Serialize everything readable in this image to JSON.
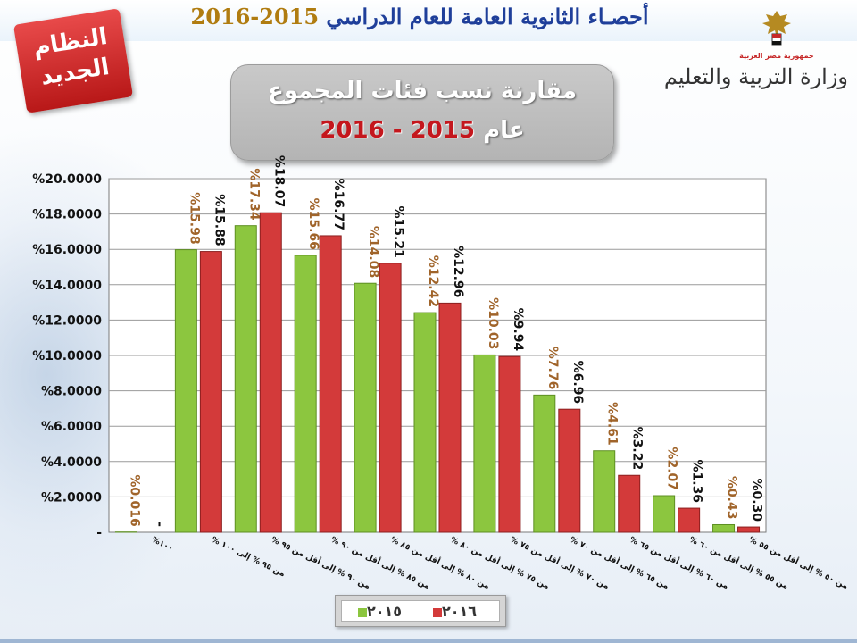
{
  "header": {
    "title_text": "أحصـاء الثانوية العامة للعام الدراسي",
    "title_year": "2015-2016"
  },
  "badge": {
    "line1": "النظام",
    "line2": "الجديد"
  },
  "logo": {
    "caption": "جمهورية مصر العربية",
    "ministry": "وزارة التربية والتعليم"
  },
  "title_box": {
    "line1": "مقارنة  نسب فئات المجموع",
    "line2_prefix": "عام",
    "line2_year": "2015 - 2016"
  },
  "colors": {
    "series_2015": "#8cc63f",
    "series_2016": "#d33a3a",
    "frame_2016_label": "#111111",
    "label_2015": "#a0642a"
  },
  "chart_data": {
    "type": "bar",
    "ylim": [
      0,
      20
    ],
    "y_ticks": [
      "-",
      "%2.0000",
      "%4.0000",
      "%6.0000",
      "%8.0000",
      "%10.0000",
      "%12.0000",
      "%14.0000",
      "%16.0000",
      "%18.0000",
      "%20.0000"
    ],
    "grid": true,
    "legend_position": "bottom",
    "categories": [
      "١٠٠%",
      "من ٩٥ % إلى ١٠٠ %",
      "من ٩٠ % إلى أقل من ٩٥ %",
      "من ٨٥ % إلى أقل من ٩٠ %",
      "من ٨٠ % إلى أقل من ٨٥ %",
      "من ٧٥ % إلى أقل من ٨٠ %",
      "من ٧٠ % إلى أقل من ٧٥ %",
      "من ٦٥ % إلى أقل من ٧٠ %",
      "من ٦٠ % إلى أقل من ٦٥ %",
      "من ٥٥ % إلى أقل من ٦٠ %",
      "من ٥٠ % إلى أقل من ٥٥ %"
    ],
    "series": [
      {
        "name": "٢٠١٥",
        "values": [
          0.016,
          15.98,
          17.34,
          15.66,
          14.08,
          12.42,
          10.03,
          7.76,
          4.61,
          2.07,
          0.43
        ],
        "labels": [
          "%0.016",
          "%15.98",
          "%17.34",
          "%15.66",
          "%14.08",
          "%12.42",
          "%10.03",
          "%7.76",
          "%4.61",
          "%2.07",
          "%0.43"
        ]
      },
      {
        "name": "٢٠١٦",
        "values": [
          0,
          15.88,
          18.07,
          16.77,
          15.21,
          12.96,
          9.94,
          6.96,
          3.22,
          1.36,
          0.3
        ],
        "labels": [
          "-",
          "%15.88",
          "%18.07",
          "%16.77",
          "%15.21",
          "%12.96",
          "%9.94",
          "%6.96",
          "%3.22",
          "%1.36",
          "%0.30"
        ]
      }
    ]
  }
}
